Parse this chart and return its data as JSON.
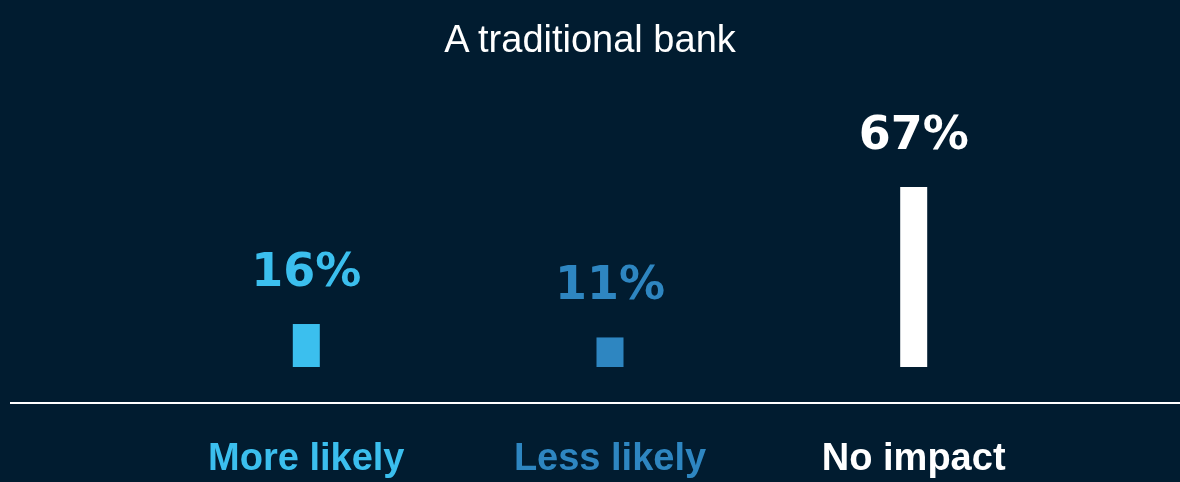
{
  "chart_data": {
    "type": "bar",
    "title": "A traditional bank",
    "categories": [
      "More likely",
      "Less likely",
      "No impact"
    ],
    "values": [
      16,
      11,
      67
    ],
    "colors": [
      "#3bbfee",
      "#2e86c1",
      "#ffffff"
    ],
    "value_labels": [
      "16%",
      "11%",
      "67%"
    ]
  }
}
